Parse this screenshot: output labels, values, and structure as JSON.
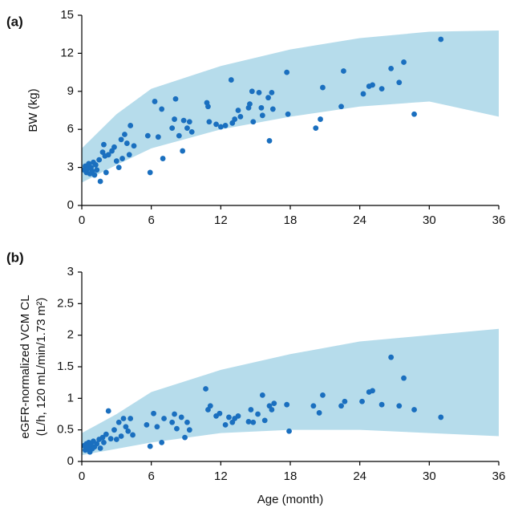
{
  "chart_data": [
    {
      "type": "scatter",
      "panel_label": "(a)",
      "ylabel": [
        "BW (kg)"
      ],
      "xlim": [
        0,
        36
      ],
      "xticks": [
        0,
        6,
        12,
        18,
        24,
        30,
        36
      ],
      "ylim": [
        0,
        15
      ],
      "yticks": [
        0,
        3,
        6,
        9,
        12,
        15
      ],
      "band": {
        "color": "#a9d6e8",
        "x": [
          0,
          3,
          6,
          12,
          18,
          24,
          30,
          36
        ],
        "lower": [
          1.8,
          3.2,
          4.5,
          6.0,
          7.0,
          7.8,
          8.2,
          7.0
        ],
        "upper": [
          4.5,
          7.2,
          9.2,
          11,
          12.3,
          13.2,
          13.7,
          13.8
        ]
      },
      "series": [
        {
          "color": "#1a6fbf",
          "x": [
            0.2,
            0.3,
            0.4,
            0.5,
            0.6,
            0.7,
            0.8,
            0.9,
            1.0,
            1.1,
            1.2,
            1.3,
            1.5,
            1.6,
            1.8,
            1.9,
            2.0,
            2.1,
            2.3,
            2.6,
            2.8,
            3.0,
            3.2,
            3.4,
            3.5,
            3.7,
            3.9,
            4.1,
            4.2,
            4.5,
            5.7,
            5.9,
            6.3,
            6.6,
            6.9,
            7.0,
            7.8,
            8.0,
            8.1,
            8.4,
            8.7,
            8.8,
            9.1,
            9.3,
            9.5,
            10.8,
            10.9,
            11.0,
            11.6,
            12.0,
            12.4,
            12.9,
            13.0,
            13.2,
            13.5,
            13.7,
            14.4,
            14.5,
            14.7,
            14.8,
            15.3,
            15.5,
            15.6,
            16.1,
            16.2,
            16.4,
            16.5,
            17.7,
            17.8,
            20.2,
            20.6,
            20.8,
            22.4,
            22.6,
            24.3,
            24.8,
            25.1,
            25.9,
            26.7,
            27.4,
            27.8,
            28.7,
            31.0
          ],
          "values": [
            2.8,
            3.1,
            2.6,
            2.9,
            3.3,
            2.5,
            3.0,
            2.7,
            3.4,
            2.4,
            3.2,
            2.8,
            3.6,
            1.9,
            4.2,
            4.8,
            3.9,
            2.6,
            4.0,
            4.3,
            4.6,
            3.5,
            3.0,
            5.2,
            3.7,
            5.6,
            4.9,
            4.0,
            6.3,
            4.7,
            5.5,
            2.6,
            8.2,
            5.4,
            7.6,
            3.7,
            6.1,
            6.8,
            8.4,
            5.5,
            4.3,
            6.7,
            6.1,
            6.6,
            5.8,
            8.1,
            7.8,
            6.6,
            6.4,
            6.2,
            6.3,
            9.9,
            6.5,
            6.8,
            7.5,
            7.0,
            7.7,
            8.0,
            9.0,
            6.6,
            8.9,
            7.7,
            7.1,
            8.5,
            5.1,
            8.9,
            7.6,
            10.5,
            7.2,
            6.1,
            6.8,
            9.3,
            7.8,
            10.6,
            8.8,
            9.4,
            9.5,
            9.2,
            10.8,
            9.7,
            11.3,
            7.2,
            13.1
          ]
        }
      ]
    },
    {
      "type": "scatter",
      "panel_label": "(b)",
      "ylabel": [
        "eGFR-normalized VCM CL",
        "(L/h, 120 mL/min/1.73 m²)"
      ],
      "xlabel": "Age (month)",
      "xlim": [
        0,
        36
      ],
      "xticks": [
        0,
        6,
        12,
        18,
        24,
        30,
        36
      ],
      "ylim": [
        0,
        3
      ],
      "yticks": [
        0,
        0.5,
        1,
        1.5,
        2,
        2.5,
        3
      ],
      "band": {
        "color": "#a9d6e8",
        "x": [
          0,
          3,
          6,
          12,
          18,
          24,
          30,
          36
        ],
        "lower": [
          0.1,
          0.2,
          0.3,
          0.45,
          0.5,
          0.5,
          0.45,
          0.4
        ],
        "upper": [
          0.45,
          0.75,
          1.1,
          1.45,
          1.7,
          1.9,
          2.0,
          2.1
        ]
      },
      "series": [
        {
          "color": "#1a6fbf",
          "x": [
            0.2,
            0.3,
            0.4,
            0.5,
            0.6,
            0.7,
            0.8,
            0.9,
            1.0,
            1.1,
            1.3,
            1.5,
            1.6,
            1.8,
            1.9,
            2.1,
            2.3,
            2.5,
            2.8,
            3.0,
            3.2,
            3.4,
            3.6,
            3.8,
            4.0,
            4.2,
            4.4,
            5.6,
            5.9,
            6.2,
            6.5,
            6.9,
            7.1,
            7.8,
            8.0,
            8.2,
            8.6,
            8.9,
            9.1,
            9.3,
            10.7,
            10.9,
            11.1,
            11.6,
            11.9,
            12.4,
            12.7,
            13.0,
            13.2,
            13.5,
            14.4,
            14.6,
            14.8,
            15.2,
            15.6,
            15.8,
            16.2,
            16.4,
            16.6,
            17.7,
            17.9,
            20.0,
            20.5,
            20.8,
            22.4,
            22.7,
            24.2,
            24.8,
            25.1,
            25.9,
            26.7,
            27.4,
            27.8,
            28.7,
            31.0
          ],
          "values": [
            0.25,
            0.18,
            0.28,
            0.22,
            0.3,
            0.15,
            0.26,
            0.2,
            0.32,
            0.23,
            0.28,
            0.35,
            0.21,
            0.38,
            0.3,
            0.43,
            0.8,
            0.36,
            0.5,
            0.35,
            0.62,
            0.4,
            0.68,
            0.55,
            0.48,
            0.68,
            0.42,
            0.58,
            0.24,
            0.76,
            0.55,
            0.3,
            0.68,
            0.62,
            0.75,
            0.52,
            0.7,
            0.38,
            0.62,
            0.5,
            1.15,
            0.82,
            0.88,
            0.72,
            0.76,
            0.58,
            0.7,
            0.62,
            0.68,
            0.72,
            0.63,
            0.82,
            0.62,
            0.75,
            1.05,
            0.65,
            0.88,
            0.82,
            0.92,
            0.9,
            0.48,
            0.88,
            0.77,
            1.05,
            0.88,
            0.95,
            0.95,
            1.1,
            1.12,
            0.9,
            1.65,
            0.88,
            1.32,
            0.82,
            0.7
          ]
        }
      ]
    }
  ]
}
